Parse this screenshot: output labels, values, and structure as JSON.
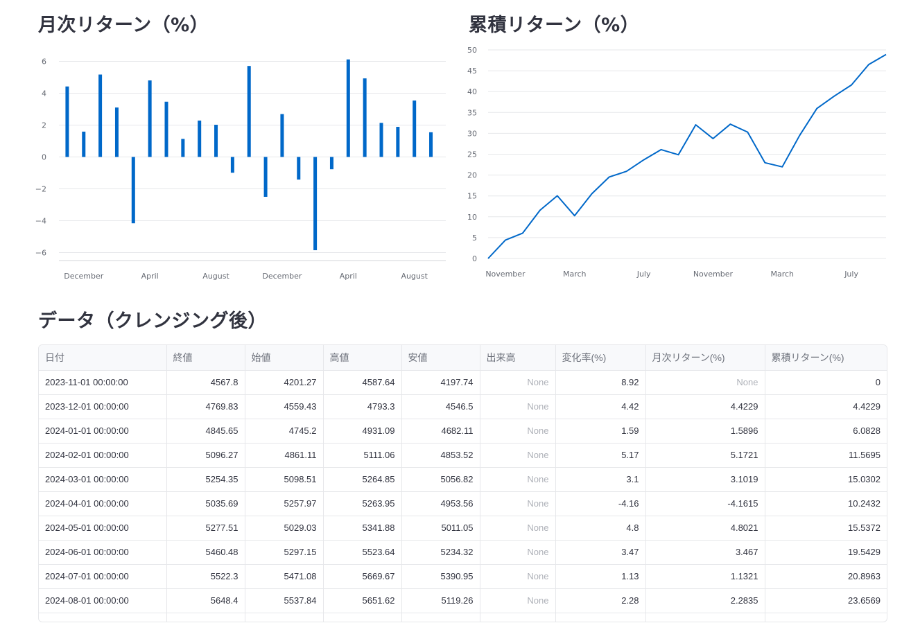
{
  "headings": {
    "monthly": "月次リターン（%）",
    "cumulative": "累積リターン（%）",
    "data": "データ（クレンジング後）"
  },
  "colors": {
    "series": "#0068c9",
    "grid": "#e6e7ea",
    "text": "#31333f"
  },
  "chart_data": [
    {
      "type": "bar",
      "title": "月次リターン（%）",
      "ylim": [
        -6.5,
        6.5
      ],
      "yticks": [
        6,
        4,
        2,
        0,
        -2,
        -4,
        -6
      ],
      "ytick_labels": [
        "6",
        "4",
        "2",
        "0",
        "−2",
        "−4",
        "−6"
      ],
      "xtick_labels": [
        "December",
        "April",
        "August",
        "December",
        "April",
        "August"
      ],
      "x_start_index": 1,
      "series": [
        {
          "values": [
            4.4229,
            1.5896,
            5.1721,
            3.1019,
            -4.1615,
            4.8021,
            3.467,
            1.1321,
            2.2835,
            2.02,
            -0.99,
            5.71,
            -2.5,
            2.69,
            -1.42,
            -5.85,
            -0.77,
            6.12,
            4.93,
            2.14,
            1.89,
            3.54,
            1.55
          ]
        }
      ],
      "grid": true
    },
    {
      "type": "line",
      "title": "累積リターン（%）",
      "ylim": [
        0,
        50
      ],
      "yticks": [
        50,
        45,
        40,
        35,
        30,
        25,
        20,
        15,
        10,
        5,
        0
      ],
      "xtick_labels": [
        "November",
        "March",
        "July",
        "November",
        "March",
        "July"
      ],
      "series": [
        {
          "values": [
            0,
            4.4229,
            6.0828,
            11.5695,
            15.0302,
            10.2432,
            15.5372,
            19.5429,
            20.8963,
            23.6569,
            26.1,
            24.86,
            32.04,
            28.73,
            32.19,
            30.3,
            22.95,
            21.96,
            29.45,
            35.95,
            38.9,
            41.6,
            46.5,
            48.9
          ]
        }
      ],
      "grid": true
    }
  ],
  "table": {
    "columns": [
      "日付",
      "終値",
      "始値",
      "高値",
      "安値",
      "出来高",
      "変化率(%)",
      "月次リターン(%)",
      "累積リターン(%)"
    ],
    "rows": [
      [
        "2023-11-01 00:00:00",
        "4567.8",
        "4201.27",
        "4587.64",
        "4197.74",
        "None",
        "8.92",
        "None",
        "0"
      ],
      [
        "2023-12-01 00:00:00",
        "4769.83",
        "4559.43",
        "4793.3",
        "4546.5",
        "None",
        "4.42",
        "4.4229",
        "4.4229"
      ],
      [
        "2024-01-01 00:00:00",
        "4845.65",
        "4745.2",
        "4931.09",
        "4682.11",
        "None",
        "1.59",
        "1.5896",
        "6.0828"
      ],
      [
        "2024-02-01 00:00:00",
        "5096.27",
        "4861.11",
        "5111.06",
        "4853.52",
        "None",
        "5.17",
        "5.1721",
        "11.5695"
      ],
      [
        "2024-03-01 00:00:00",
        "5254.35",
        "5098.51",
        "5264.85",
        "5056.82",
        "None",
        "3.1",
        "3.1019",
        "15.0302"
      ],
      [
        "2024-04-01 00:00:00",
        "5035.69",
        "5257.97",
        "5263.95",
        "4953.56",
        "None",
        "-4.16",
        "-4.1615",
        "10.2432"
      ],
      [
        "2024-05-01 00:00:00",
        "5277.51",
        "5029.03",
        "5341.88",
        "5011.05",
        "None",
        "4.8",
        "4.8021",
        "15.5372"
      ],
      [
        "2024-06-01 00:00:00",
        "5460.48",
        "5297.15",
        "5523.64",
        "5234.32",
        "None",
        "3.47",
        "3.467",
        "19.5429"
      ],
      [
        "2024-07-01 00:00:00",
        "5522.3",
        "5471.08",
        "5669.67",
        "5390.95",
        "None",
        "1.13",
        "1.1321",
        "20.8963"
      ],
      [
        "2024-08-01 00:00:00",
        "5648.4",
        "5537.84",
        "5651.62",
        "5119.26",
        "None",
        "2.28",
        "2.2835",
        "23.6569"
      ],
      [
        "",
        "",
        "",
        "",
        "",
        "",
        "",
        "",
        ""
      ]
    ]
  }
}
